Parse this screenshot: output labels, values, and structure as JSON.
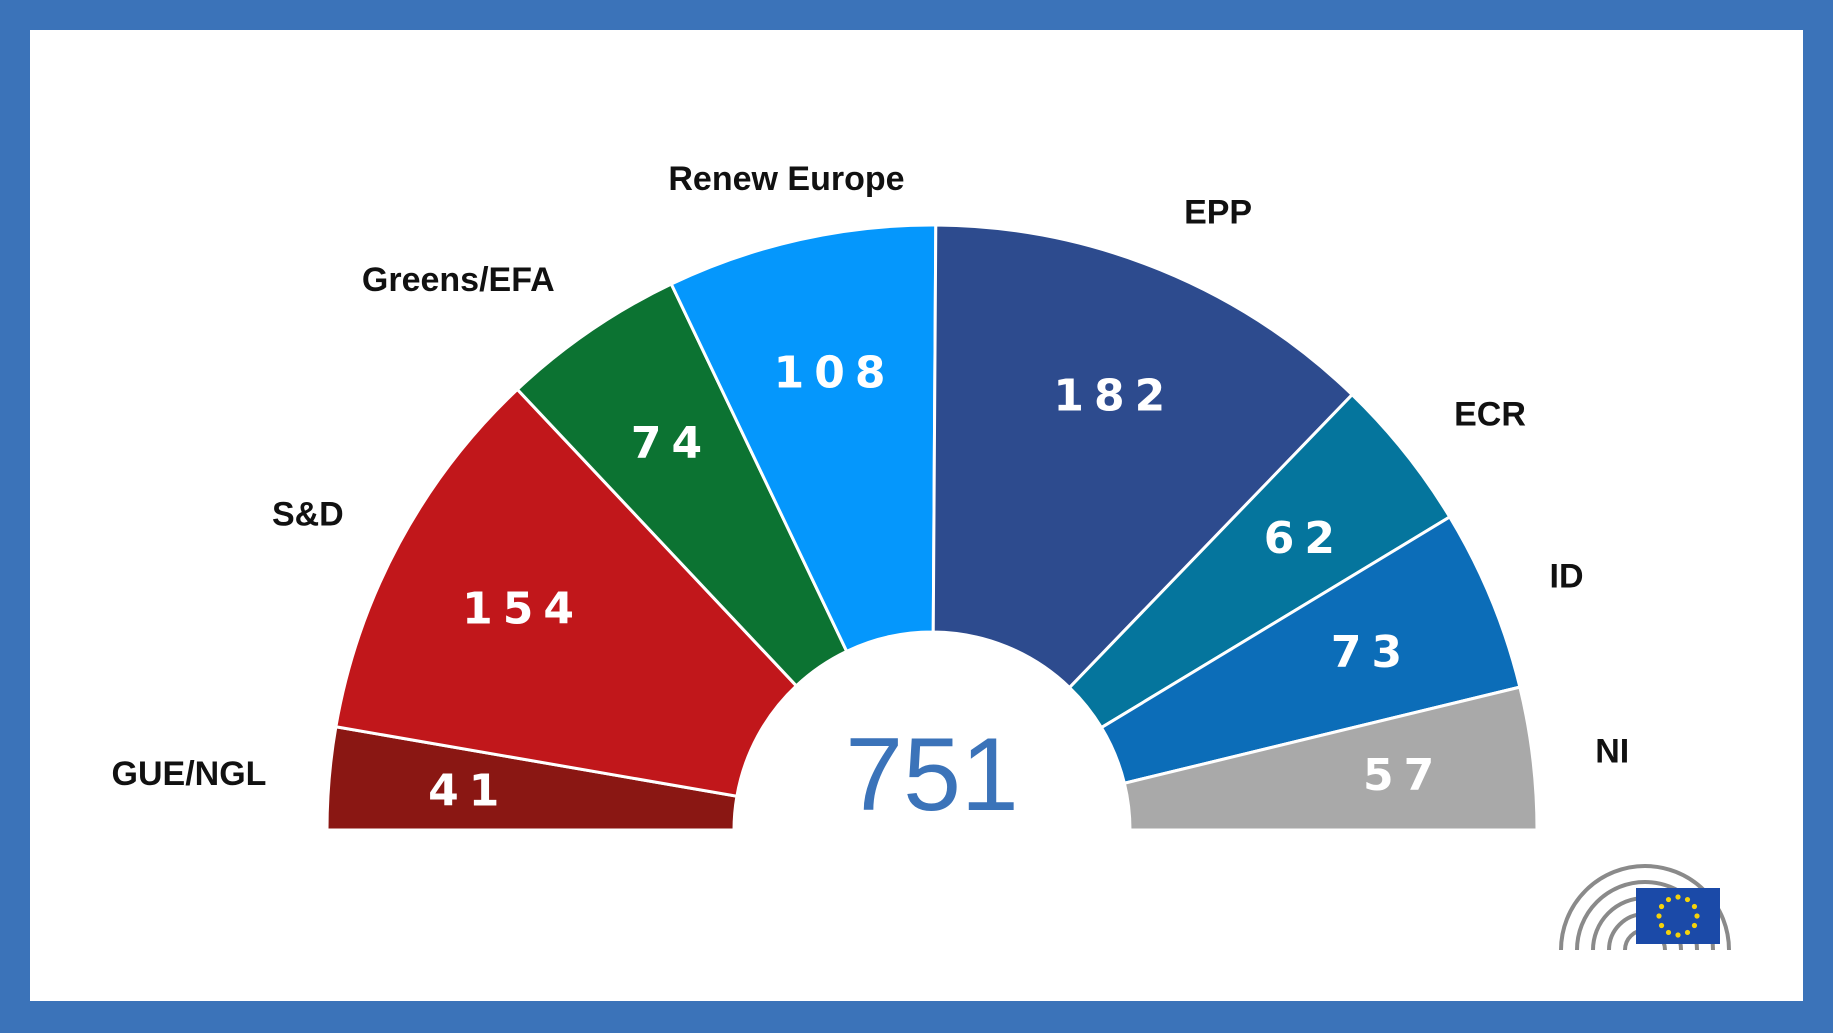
{
  "chart_data": {
    "type": "pie",
    "variant": "semicircle-parliament",
    "total": "751",
    "categories": [
      "GUE/NGL",
      "S&D",
      "Greens/EFA",
      "Renew Europe",
      "EPP",
      "ECR",
      "ID",
      "NI"
    ],
    "values": [
      41,
      154,
      74,
      108,
      182,
      62,
      73,
      57
    ],
    "colors": [
      "#8a1713",
      "#c1171b",
      "#0c7332",
      "#0597fc",
      "#2d4b8e",
      "#05759d",
      "#0c6db8",
      "#a9a9a9"
    ],
    "total_color": "#3b73b9",
    "legend": "labels-outside-segments"
  },
  "logo": {
    "icon": "european-parliament-hemicycle-logo",
    "flag_color": "#1b4aa8",
    "star_color": "#f5d20a"
  }
}
